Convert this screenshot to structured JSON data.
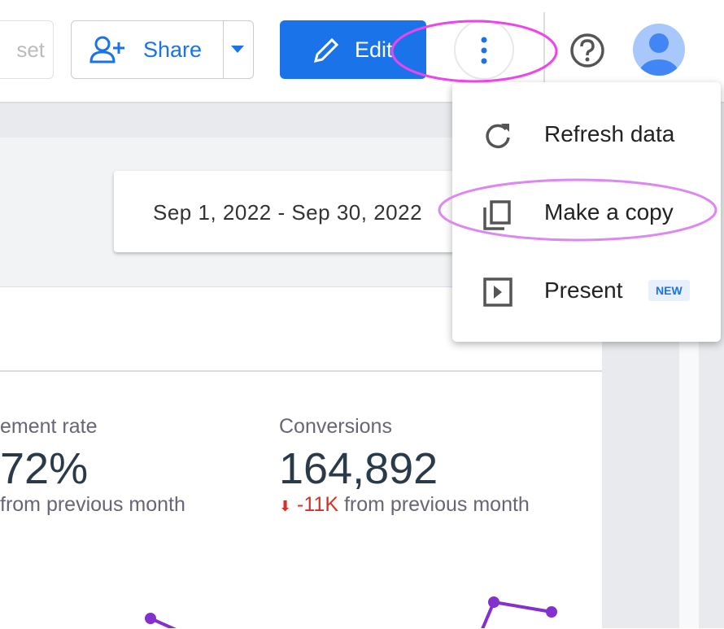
{
  "toolbar": {
    "reset": "set",
    "share": "Share",
    "edit": "Edit"
  },
  "menu": {
    "items": [
      {
        "label": "Refresh data"
      },
      {
        "label": "Make a copy"
      },
      {
        "label": "Present",
        "badge": "NEW"
      }
    ]
  },
  "date_range": "Sep 1, 2022 - Sep 30, 2022",
  "scorecards": [
    {
      "title": "ement rate",
      "value": "72%",
      "delta_text": "from previous month"
    },
    {
      "title": "Conversions",
      "value": "164,892",
      "delta": "-11K",
      "delta_text": "from previous month"
    }
  ]
}
